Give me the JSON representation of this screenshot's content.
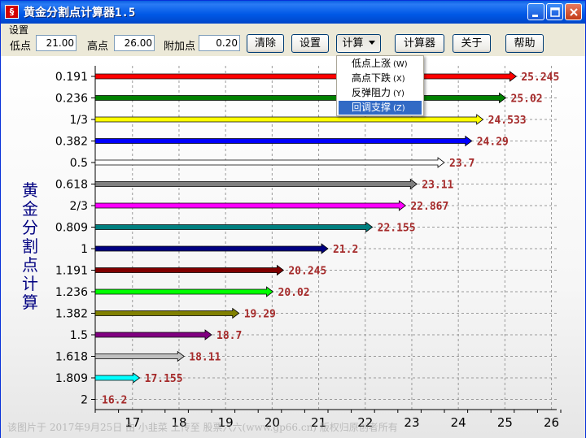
{
  "window": {
    "title": "黄金分割点计算器1.5",
    "icon_name": "app-logo-icon",
    "controls": [
      "minimize-icon",
      "maximize-icon",
      "close-icon"
    ]
  },
  "settings": {
    "group_label": "设置",
    "low_label": "低点",
    "low_value": "21.00",
    "high_label": "高点",
    "high_value": "26.00",
    "extra_label": "附加点",
    "extra_value": "0.20"
  },
  "toolbar": {
    "clear_label": "清除",
    "settings_label": "设置",
    "calc_label": "计算",
    "calculator_label": "计算器",
    "about_label": "关于",
    "help_label": "帮助"
  },
  "calc_menu": {
    "items": [
      {
        "label": "低点上涨",
        "hotkey": "(W)"
      },
      {
        "label": "高点下跌",
        "hotkey": "(X)"
      },
      {
        "label": "反弹阻力",
        "hotkey": "(Y)"
      },
      {
        "label": "回调支撑",
        "hotkey": "(Z)"
      }
    ],
    "selected_index": 3
  },
  "side_title": "黄金分割点计算",
  "watermark": "该图片于 2017年9月25日 由 小韭菜 上传至 股票六六(www.gp66.cn) 版权归原创者所有",
  "chart_data": {
    "type": "bar",
    "orientation": "horizontal",
    "categories": [
      "0.191",
      "0.236",
      "1/3",
      "0.382",
      "0.5",
      "0.618",
      "2/3",
      "0.809",
      "1",
      "1.191",
      "1.236",
      "1.382",
      "1.5",
      "1.618",
      "1.809",
      "2"
    ],
    "values": [
      25.245,
      25.02,
      24.533,
      24.29,
      23.7,
      23.11,
      22.867,
      22.155,
      21.2,
      20.245,
      20.02,
      19.29,
      18.7,
      18.11,
      17.155,
      16.2
    ],
    "value_labels": [
      "25.245",
      "25.02",
      "24.533",
      "24.29",
      "23.7",
      "23.11",
      "22.867",
      "22.155",
      "21.2",
      "20.245",
      "20.02",
      "19.29",
      "18.7",
      "18.11",
      "17.155",
      "16.2"
    ],
    "colors": [
      "#FF0000",
      "#008000",
      "#FFFF00",
      "#0000FF",
      "#FFFFFF",
      "#808080",
      "#FF00FF",
      "#008080",
      "#000080",
      "#800000",
      "#00FF00",
      "#808000",
      "#800080",
      "#C0C0C0",
      "#00FFFF",
      "#FFFFFF"
    ],
    "x_ticks": [
      17,
      18,
      19,
      20,
      21,
      22,
      23,
      24,
      25,
      26
    ],
    "xlim": [
      16.2,
      26.2
    ],
    "grid": true,
    "label_color": "#A52A2A"
  }
}
